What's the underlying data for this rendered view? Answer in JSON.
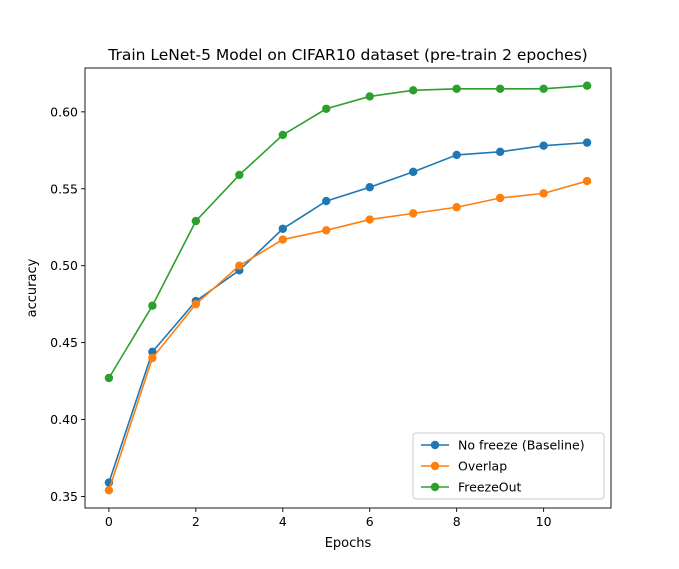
{
  "chart_data": {
    "type": "line",
    "title": "Train LeNet-5 Model on CIFAR10 dataset (pre-train 2 epoches)",
    "xlabel": "Epochs",
    "ylabel": "accuracy",
    "xlim": [
      -0.55,
      11.55
    ],
    "ylim": [
      0.3425,
      0.6285
    ],
    "xticks": [
      0,
      2,
      4,
      6,
      8,
      10
    ],
    "xtick_labels": [
      "0",
      "2",
      "4",
      "6",
      "8",
      "10"
    ],
    "yticks": [
      0.35,
      0.4,
      0.45,
      0.5,
      0.55,
      0.6
    ],
    "ytick_labels": [
      "0.35",
      "0.40",
      "0.45",
      "0.50",
      "0.55",
      "0.60"
    ],
    "grid": false,
    "legend_position": "lower-right",
    "x": [
      0,
      1,
      2,
      3,
      4,
      5,
      6,
      7,
      8,
      9,
      10,
      11
    ],
    "series": [
      {
        "name": "No freeze (Baseline)",
        "color": "#1f77b4",
        "marker": "circle",
        "values": [
          0.359,
          0.444,
          0.477,
          0.497,
          0.524,
          0.542,
          0.551,
          0.561,
          0.572,
          0.574,
          0.578,
          0.58
        ]
      },
      {
        "name": "Overlap",
        "color": "#ff7f0e",
        "marker": "circle",
        "values": [
          0.354,
          0.44,
          0.475,
          0.5,
          0.517,
          0.523,
          0.53,
          0.534,
          0.538,
          0.544,
          0.547,
          0.555
        ]
      },
      {
        "name": "FreezeOut",
        "color": "#2ca02c",
        "marker": "circle",
        "values": [
          0.427,
          0.474,
          0.529,
          0.559,
          0.585,
          0.602,
          0.61,
          0.614,
          0.615,
          0.615,
          0.615,
          0.617
        ]
      }
    ]
  }
}
